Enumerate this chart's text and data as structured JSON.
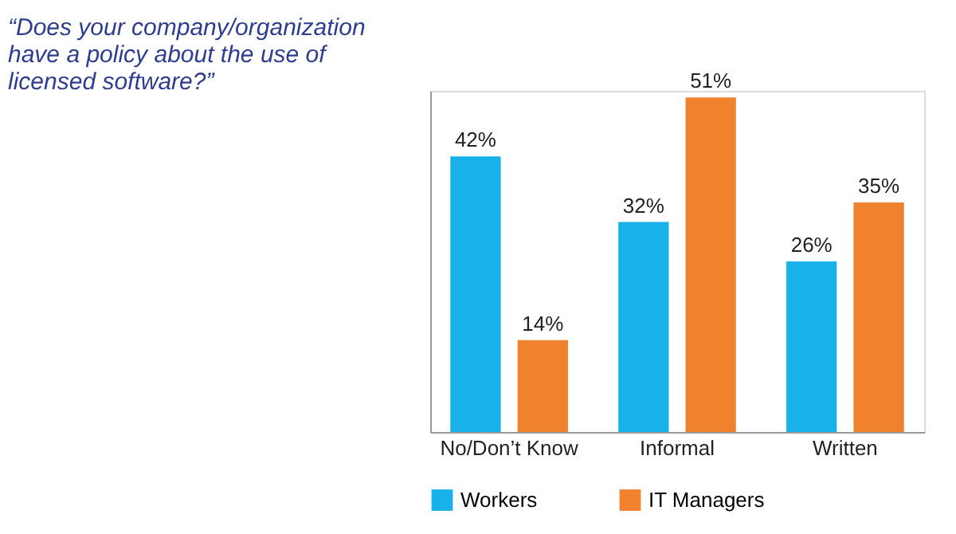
{
  "chart_data": {
    "type": "bar",
    "title": [
      "“Does your company/organization",
      "have a policy about the use of",
      "licensed software?”"
    ],
    "categories": [
      "No/Don’t Know",
      "Informal",
      "Written"
    ],
    "series": [
      {
        "name": "Workers",
        "color": "#18b1e9",
        "values": [
          42,
          32,
          26
        ],
        "value_labels": [
          "42%",
          "32%",
          "26%"
        ]
      },
      {
        "name": "IT Managers",
        "color": "#f0822e",
        "values": [
          14,
          51,
          35
        ],
        "value_labels": [
          "14%",
          "51%",
          "35%"
        ]
      }
    ],
    "ylim": [
      0,
      52
    ],
    "tick_labels": "x",
    "grid": false,
    "legend": "bottom"
  }
}
